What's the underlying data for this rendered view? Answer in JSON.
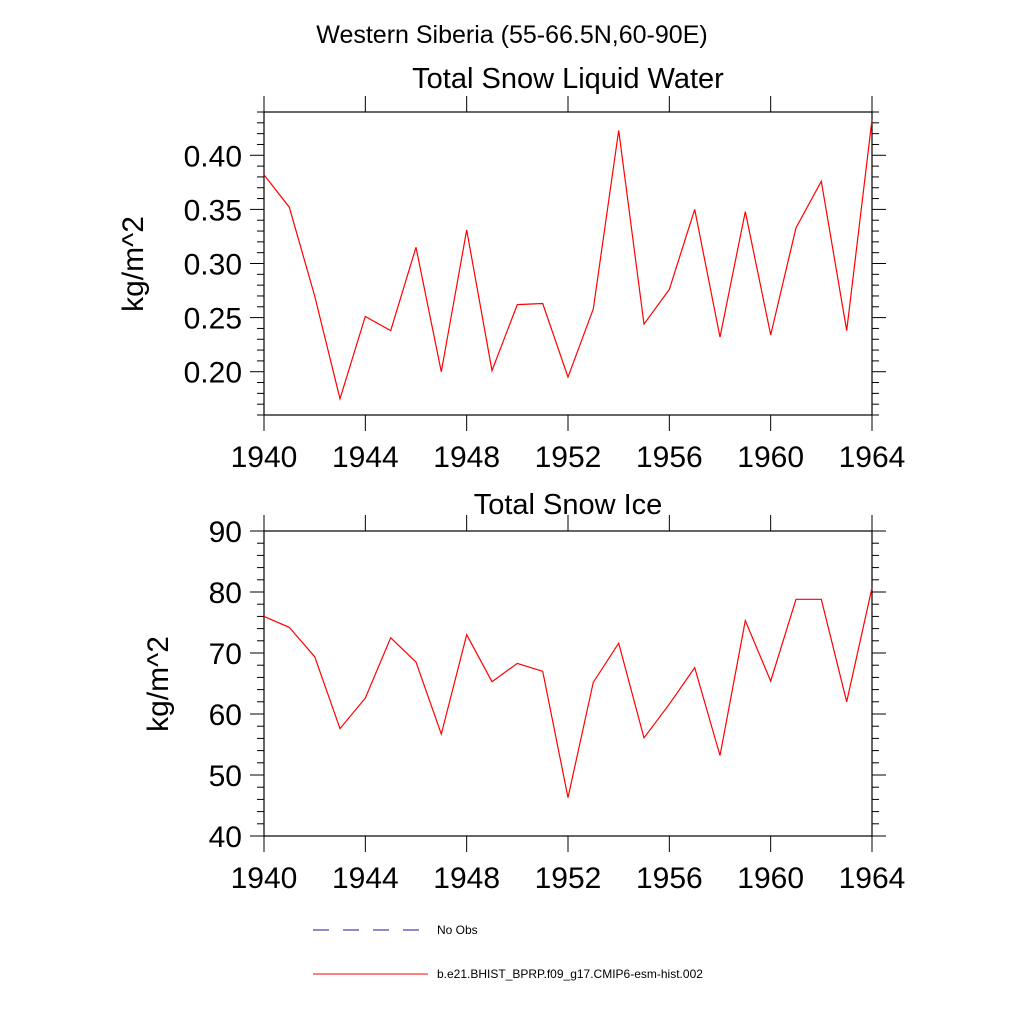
{
  "suptitle": "Western Siberia (55-66.5N,60-90E)",
  "legend": [
    {
      "label": "No Obs",
      "color": "#1a1a99",
      "style": "dashed"
    },
    {
      "label": "b.e21.BHIST_BPRP.f09_g17.CMIP6-esm-hist.002",
      "color": "#ff0000",
      "style": "solid"
    }
  ],
  "chart_data": [
    {
      "type": "line",
      "title": "Total Snow Liquid Water",
      "ylabel": "kg/m^2",
      "xlim": [
        1940,
        1964
      ],
      "ylim": [
        0.16,
        0.44
      ],
      "xticks": [
        1940,
        1944,
        1948,
        1952,
        1956,
        1960,
        1964
      ],
      "xtick_labels": [
        "1940",
        "1944",
        "1948",
        "1952",
        "1956",
        "1960",
        "1964"
      ],
      "yticks": [
        0.2,
        0.25,
        0.3,
        0.35,
        0.4
      ],
      "ytick_labels": [
        "0.20",
        "0.25",
        "0.30",
        "0.35",
        "0.40"
      ],
      "x": [
        1940,
        1941,
        1942,
        1943,
        1944,
        1945,
        1946,
        1947,
        1948,
        1949,
        1950,
        1951,
        1952,
        1953,
        1954,
        1955,
        1956,
        1957,
        1958,
        1959,
        1960,
        1961,
        1962,
        1963,
        1964
      ],
      "series": [
        {
          "name": "b.e21.BHIST_BPRP.f09_g17.CMIP6-esm-hist.002",
          "color": "#ff0000",
          "values": [
            0.382,
            0.352,
            0.27,
            0.175,
            0.251,
            0.238,
            0.315,
            0.2,
            0.331,
            0.201,
            0.262,
            0.263,
            0.195,
            0.258,
            0.423,
            0.244,
            0.276,
            0.35,
            0.232,
            0.348,
            0.234,
            0.333,
            0.376,
            0.238,
            0.433
          ]
        }
      ]
    },
    {
      "type": "line",
      "title": "Total Snow Ice",
      "ylabel": "kg/m^2",
      "xlim": [
        1940,
        1964
      ],
      "ylim": [
        40,
        90
      ],
      "xticks": [
        1940,
        1944,
        1948,
        1952,
        1956,
        1960,
        1964
      ],
      "xtick_labels": [
        "1940",
        "1944",
        "1948",
        "1952",
        "1956",
        "1960",
        "1964"
      ],
      "yticks": [
        40,
        50,
        60,
        70,
        80,
        90
      ],
      "ytick_labels": [
        "40",
        "50",
        "60",
        "70",
        "80",
        "90"
      ],
      "x": [
        1940,
        1941,
        1942,
        1943,
        1944,
        1945,
        1946,
        1947,
        1948,
        1949,
        1950,
        1951,
        1952,
        1953,
        1954,
        1955,
        1956,
        1957,
        1958,
        1959,
        1960,
        1961,
        1962,
        1963,
        1964
      ],
      "series": [
        {
          "name": "b.e21.BHIST_BPRP.f09_g17.CMIP6-esm-hist.002",
          "color": "#ff0000",
          "values": [
            76.0,
            74.2,
            69.4,
            57.6,
            62.6,
            72.5,
            68.5,
            56.7,
            73.0,
            65.3,
            68.3,
            67.0,
            46.3,
            65.2,
            71.6,
            56.1,
            61.6,
            67.6,
            53.2,
            75.3,
            65.4,
            78.8,
            78.8,
            62.0,
            80.7
          ]
        }
      ]
    }
  ]
}
